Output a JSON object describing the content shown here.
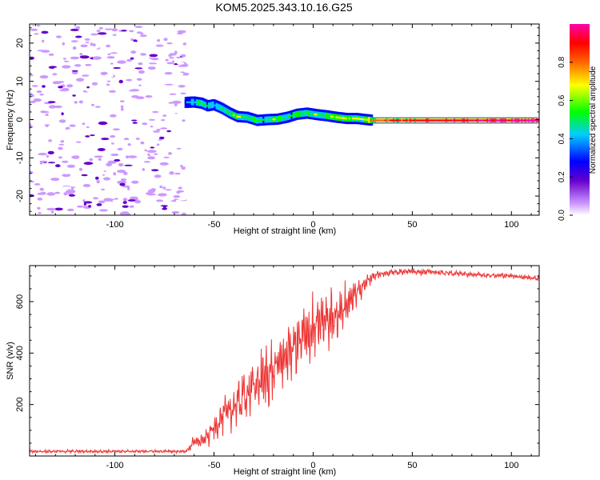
{
  "title": "KOM5.2025.343.10.16.G25",
  "chart_data": [
    {
      "type": "heatmap",
      "name": "spectrogram",
      "xlabel": "Height of straight line (km)",
      "ylabel": "Frequency (Hz)",
      "xlim": [
        -143,
        114
      ],
      "ylim": [
        -25,
        25
      ],
      "xticks": [
        -100,
        -50,
        0,
        50,
        100
      ],
      "yticks": [
        -20,
        -10,
        0,
        10,
        20
      ],
      "xtick_labels": [
        "-100",
        "-50",
        "0",
        "50",
        "100"
      ],
      "ytick_labels": [
        "-20",
        "-10",
        "0",
        "10",
        "20"
      ],
      "colorbar": {
        "label": "Normalized spectral amplitude",
        "colormap": "rainbow (white-purple-blue-cyan-green-yellow-red-magenta)",
        "range": [
          0,
          1
        ],
        "ticks": [
          0.0,
          0.2,
          0.4,
          0.6,
          0.8
        ],
        "tick_labels": [
          "0.0",
          "0.2",
          "0.4",
          "0.6",
          "0.8"
        ]
      },
      "noise_region_x": [
        -143,
        -64
      ],
      "signal_track": [
        {
          "x": -64,
          "f": 4.5,
          "amp": 0.35
        },
        {
          "x": -60,
          "f": 4.6,
          "amp": 0.45
        },
        {
          "x": -56,
          "f": 4.3,
          "amp": 0.6
        },
        {
          "x": -53,
          "f": 3.6,
          "amp": 0.5
        },
        {
          "x": -50,
          "f": 3.9,
          "amp": 0.45
        },
        {
          "x": -46,
          "f": 3.0,
          "amp": 0.5
        },
        {
          "x": -42,
          "f": 1.8,
          "amp": 0.55
        },
        {
          "x": -38,
          "f": 0.8,
          "amp": 0.65
        },
        {
          "x": -33,
          "f": 0.6,
          "amp": 0.55
        },
        {
          "x": -28,
          "f": -0.2,
          "amp": 0.6
        },
        {
          "x": -23,
          "f": 0.0,
          "amp": 0.5
        },
        {
          "x": -18,
          "f": 0.1,
          "amp": 0.65
        },
        {
          "x": -13,
          "f": 0.6,
          "amp": 0.5
        },
        {
          "x": -8,
          "f": 1.4,
          "amp": 0.6
        },
        {
          "x": -3,
          "f": 1.7,
          "amp": 0.55
        },
        {
          "x": 2,
          "f": 1.3,
          "amp": 0.6
        },
        {
          "x": 7,
          "f": 1.0,
          "amp": 0.55
        },
        {
          "x": 12,
          "f": 0.6,
          "amp": 0.7
        },
        {
          "x": 17,
          "f": 0.3,
          "amp": 0.6
        },
        {
          "x": 22,
          "f": 0.3,
          "amp": 0.65
        },
        {
          "x": 27,
          "f": 0.0,
          "amp": 0.7
        },
        {
          "x": 31,
          "f": -0.2,
          "amp": 0.85
        },
        {
          "x": 114,
          "f": -0.2,
          "amp": 1.0
        }
      ]
    },
    {
      "type": "line",
      "name": "snr",
      "xlabel": "Height of straight line (km)",
      "ylabel": "SNR (v/v)",
      "xlim": [
        -143,
        114
      ],
      "ylim": [
        0,
        740
      ],
      "xticks": [
        -100,
        -50,
        0,
        50,
        100
      ],
      "yticks": [
        200,
        400,
        600
      ],
      "xtick_labels": [
        "-100",
        "-50",
        "0",
        "50",
        "100"
      ],
      "ytick_labels": [
        "200",
        "400",
        "600"
      ],
      "color": "#ee3333",
      "envelope": [
        {
          "x": -143,
          "mean": 18,
          "amp": 6
        },
        {
          "x": -64,
          "mean": 18,
          "amp": 6
        },
        {
          "x": -60,
          "mean": 55,
          "amp": 25
        },
        {
          "x": -55,
          "mean": 60,
          "amp": 30
        },
        {
          "x": -50,
          "mean": 110,
          "amp": 55
        },
        {
          "x": -45,
          "mean": 160,
          "amp": 70
        },
        {
          "x": -40,
          "mean": 190,
          "amp": 90
        },
        {
          "x": -35,
          "mean": 230,
          "amp": 100
        },
        {
          "x": -30,
          "mean": 270,
          "amp": 100
        },
        {
          "x": -25,
          "mean": 300,
          "amp": 120
        },
        {
          "x": -20,
          "mean": 330,
          "amp": 120
        },
        {
          "x": -15,
          "mean": 380,
          "amp": 110
        },
        {
          "x": -10,
          "mean": 420,
          "amp": 120
        },
        {
          "x": -5,
          "mean": 460,
          "amp": 130
        },
        {
          "x": 0,
          "mean": 490,
          "amp": 140
        },
        {
          "x": 5,
          "mean": 520,
          "amp": 130
        },
        {
          "x": 10,
          "mean": 540,
          "amp": 120
        },
        {
          "x": 15,
          "mean": 570,
          "amp": 90
        },
        {
          "x": 20,
          "mean": 620,
          "amp": 60
        },
        {
          "x": 25,
          "mean": 660,
          "amp": 40
        },
        {
          "x": 30,
          "mean": 700,
          "amp": 20
        },
        {
          "x": 40,
          "mean": 715,
          "amp": 12
        },
        {
          "x": 50,
          "mean": 718,
          "amp": 14
        },
        {
          "x": 60,
          "mean": 715,
          "amp": 12
        },
        {
          "x": 80,
          "mean": 705,
          "amp": 10
        },
        {
          "x": 100,
          "mean": 700,
          "amp": 10
        },
        {
          "x": 114,
          "mean": 690,
          "amp": 10
        }
      ]
    }
  ]
}
